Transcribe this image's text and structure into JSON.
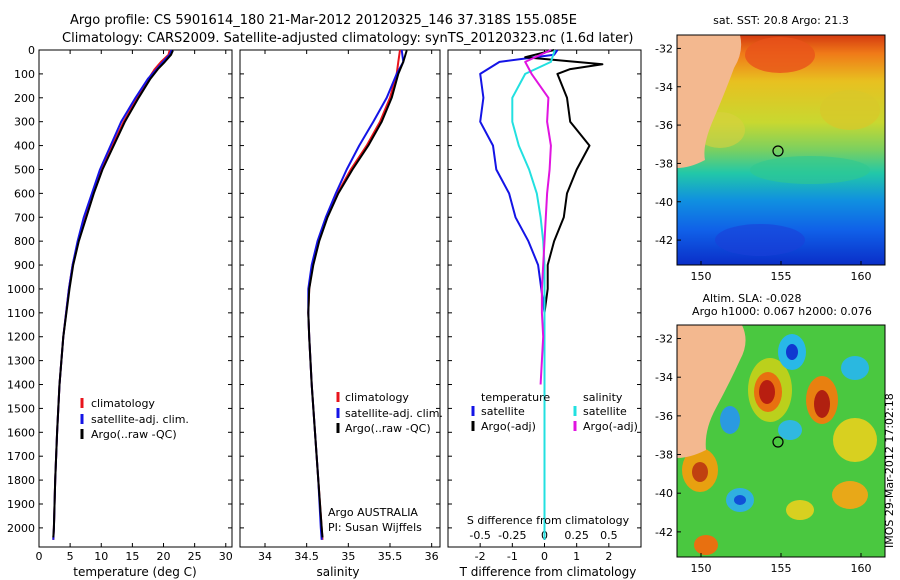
{
  "title": {
    "line1": "Argo profile: CS 5901614_180 21-Mar-2012 20120325_146 37.318S 155.085E",
    "line2": "Climatology: CARS2009. Satellite-adjusted climatology: synTS_20120323.nc (1.6d later)"
  },
  "colors": {
    "clim": "#e8141c",
    "sat": "#1414e6",
    "argo": "#000000",
    "s_sat": "#22e0e0",
    "s_argo": "#e014e0",
    "land": "#f3b88f"
  },
  "chart_data": [
    {
      "type": "line",
      "id": "temperature",
      "xlabel": "temperature (deg C)",
      "ylabel": "",
      "xlim": [
        0,
        31
      ],
      "ylim": [
        2080,
        0
      ],
      "xticks": [
        "0",
        "5",
        "10",
        "15",
        "20",
        "25",
        "30"
      ],
      "yticks": [
        "0",
        "100",
        "200",
        "300",
        "400",
        "500",
        "600",
        "700",
        "800",
        "900",
        "1000",
        "1100",
        "1200",
        "1300",
        "1400",
        "1500",
        "1600",
        "1700",
        "1800",
        "1900",
        "2000"
      ],
      "legend": [
        "climatology",
        "satellite-adj. clim.",
        "Argo(..raw -QC)"
      ],
      "series": [
        {
          "name": "climatology",
          "depth": [
            0,
            20,
            50,
            80,
            120,
            200,
            300,
            400,
            500,
            600,
            700,
            800,
            900,
            1000,
            1200,
            1400,
            1600,
            1800,
            2000,
            2050
          ],
          "values": [
            21.0,
            20.8,
            19.6,
            18.6,
            17.6,
            15.8,
            13.6,
            11.8,
            10.0,
            8.6,
            7.3,
            6.3,
            5.4,
            4.8,
            3.9,
            3.3,
            2.9,
            2.6,
            2.4,
            2.3
          ]
        },
        {
          "name": "satellite-adj. clim.",
          "depth": [
            0,
            20,
            50,
            80,
            120,
            200,
            300,
            400,
            500,
            600,
            700,
            800,
            900,
            1000,
            1200,
            1400,
            1600,
            1800,
            2000,
            2050
          ],
          "values": [
            21.3,
            21.0,
            19.9,
            18.9,
            17.5,
            15.5,
            13.2,
            11.5,
            9.8,
            8.5,
            7.2,
            6.2,
            5.4,
            4.8,
            3.9,
            3.3,
            2.9,
            2.6,
            2.4,
            2.3
          ]
        },
        {
          "name": "Argo(..raw -QC)",
          "depth": [
            2,
            20,
            50,
            80,
            120,
            200,
            300,
            400,
            500,
            600,
            700,
            800,
            900,
            1000,
            1200,
            1400,
            1600,
            1800,
            2000,
            2040
          ],
          "values": [
            21.5,
            21.2,
            20.2,
            19.1,
            17.9,
            16.0,
            13.8,
            12.0,
            10.2,
            8.8,
            7.6,
            6.4,
            5.5,
            4.9,
            3.9,
            3.3,
            2.9,
            2.6,
            2.4,
            2.3
          ]
        }
      ]
    },
    {
      "type": "line",
      "id": "salinity",
      "xlabel": "salinity",
      "ylabel": "",
      "xlim": [
        33.7,
        36.1
      ],
      "ylim": [
        2080,
        0
      ],
      "xticks": [
        "34",
        "34.5",
        "35",
        "35.5",
        "36"
      ],
      "legend": [
        "climatology",
        "satellite-adj. clim.",
        "Argo(..raw -QC)"
      ],
      "annotation": [
        "Argo AUSTRALIA",
        "PI: Susan Wijffels"
      ],
      "series": [
        {
          "name": "climatology",
          "depth": [
            0,
            50,
            100,
            200,
            300,
            400,
            500,
            600,
            700,
            800,
            900,
            1000,
            1100,
            1200,
            1400,
            1600,
            1800,
            2000,
            2050
          ],
          "values": [
            35.62,
            35.6,
            35.58,
            35.5,
            35.38,
            35.22,
            35.03,
            34.87,
            34.74,
            34.64,
            34.57,
            34.53,
            34.52,
            34.53,
            34.56,
            34.6,
            34.64,
            34.68,
            34.69
          ]
        },
        {
          "name": "satellite-adj. clim.",
          "depth": [
            0,
            50,
            100,
            200,
            300,
            400,
            500,
            600,
            700,
            800,
            900,
            1000,
            1100,
            1200,
            1400,
            1600,
            1800,
            2000,
            2050
          ],
          "values": [
            35.64,
            35.66,
            35.58,
            35.46,
            35.3,
            35.13,
            34.98,
            34.85,
            34.73,
            34.63,
            34.56,
            34.52,
            34.52,
            34.53,
            34.56,
            34.6,
            34.64,
            34.67,
            34.68
          ]
        },
        {
          "name": "Argo(..raw -QC)",
          "depth": [
            2,
            50,
            100,
            200,
            300,
            400,
            500,
            600,
            700,
            800,
            900,
            1000,
            1100,
            1200,
            1400,
            1600,
            1800,
            2000,
            2040
          ],
          "values": [
            35.7,
            35.66,
            35.6,
            35.52,
            35.4,
            35.24,
            35.05,
            34.88,
            34.75,
            34.65,
            34.58,
            34.53,
            34.52,
            34.53,
            34.56,
            34.6,
            34.64,
            34.68,
            34.69
          ]
        }
      ]
    },
    {
      "type": "line",
      "id": "difference",
      "xlabel": "T difference from climatology",
      "xlabel2": "S difference from climatology",
      "xlim": [
        -3.0,
        3.0
      ],
      "ylim": [
        2080,
        0
      ],
      "xticks": [
        "-2",
        "-1",
        "0",
        "1",
        "2"
      ],
      "xticks2": [
        "-0.5",
        "-0.25",
        "0",
        "0.25",
        "0.5"
      ],
      "legend_headers": [
        "temperature",
        "salinity"
      ],
      "legend": [
        "satellite",
        "Argo(-adj)",
        "satellite",
        "Argo(-adj)"
      ],
      "series": [
        {
          "name": "T satellite",
          "depth": [
            0,
            20,
            50,
            100,
            200,
            300,
            400,
            500,
            600,
            700,
            800,
            900,
            1000,
            1100,
            1200,
            2050
          ],
          "values": [
            0.4,
            0.3,
            -1.4,
            -2.0,
            -1.9,
            -2.0,
            -1.6,
            -1.5,
            -1.1,
            -0.9,
            -0.5,
            -0.2,
            -0.1,
            0.0,
            0.0,
            0.0
          ]
        },
        {
          "name": "T Argo(-adj)",
          "depth": [
            0,
            30,
            60,
            80,
            100,
            200,
            300,
            400,
            500,
            600,
            700,
            800,
            900,
            1000,
            1100,
            1200,
            2050
          ],
          "values": [
            0.3,
            -0.6,
            1.8,
            0.8,
            0.4,
            0.7,
            0.8,
            1.4,
            1.0,
            0.7,
            0.6,
            0.3,
            0.1,
            0.1,
            0.0,
            0.0,
            0.0
          ]
        },
        {
          "name": "S satellite",
          "depth": [
            0,
            50,
            100,
            200,
            300,
            400,
            500,
            600,
            700,
            800,
            900,
            1000,
            1200,
            2050
          ],
          "values": [
            0.08,
            0.05,
            -0.15,
            -0.25,
            -0.25,
            -0.2,
            -0.12,
            -0.06,
            -0.03,
            -0.01,
            0.0,
            0.0,
            0.0,
            0.0
          ]
        },
        {
          "name": "S Argo(-adj)",
          "depth": [
            0,
            50,
            100,
            200,
            300,
            400,
            500,
            600,
            700,
            800,
            900,
            1000,
            1100,
            1200,
            1300,
            1400
          ],
          "values": [
            0.05,
            -0.15,
            -0.1,
            0.03,
            0.02,
            0.05,
            0.04,
            0.02,
            0.01,
            0.0,
            -0.01,
            -0.02,
            -0.02,
            -0.01,
            -0.02,
            -0.03
          ]
        }
      ]
    },
    {
      "type": "heatmap",
      "id": "sst-map",
      "title": "sat. SST: 20.8 Argo: 21.3",
      "xticks": [
        "150",
        "155",
        "160"
      ],
      "yticks": [
        "-32",
        "-34",
        "-36",
        "-38",
        "-40",
        "-42"
      ],
      "xlim": [
        148.5,
        161.5
      ],
      "ylim": [
        -43.3,
        -31.3
      ],
      "profile_location": {
        "lon": 155.085,
        "lat": -37.318
      }
    },
    {
      "type": "heatmap",
      "id": "sla-map",
      "title": "Altim. SLA: -0.028",
      "subtitle": "Argo h1000: 0.067 h2000: 0.076",
      "xticks": [
        "150",
        "155",
        "160"
      ],
      "yticks": [
        "-32",
        "-34",
        "-36",
        "-38",
        "-40",
        "-42"
      ],
      "xlim": [
        148.5,
        161.5
      ],
      "ylim": [
        -43.3,
        -31.3
      ],
      "profile_location": {
        "lon": 155.085,
        "lat": -37.318
      }
    }
  ],
  "credit": "IMOS 29-Mar-2012 17:02:18"
}
